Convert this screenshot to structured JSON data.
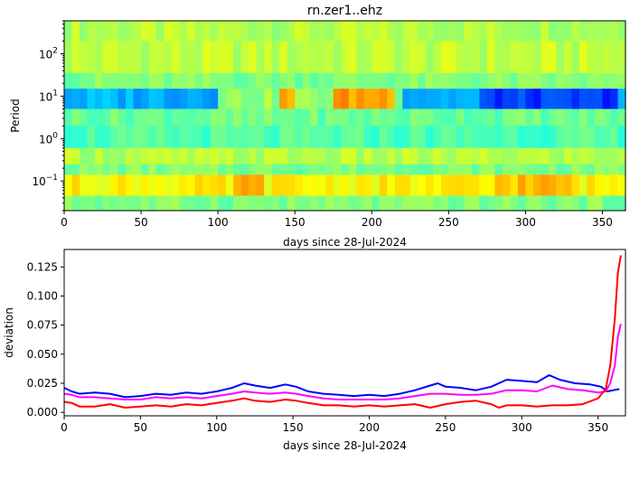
{
  "chart_data": [
    {
      "type": "heatmap",
      "title": "rn.zer1..ehz",
      "xlabel": "days since 28-Jul-2024",
      "ylabel": "Period",
      "xlim": [
        0,
        365
      ],
      "ylim": [
        0.02,
        600
      ],
      "yscale": "log",
      "x_ticks": [
        0,
        50,
        100,
        150,
        200,
        250,
        300,
        350
      ],
      "y_ticks": [
        {
          "value": 0.1,
          "base": "10",
          "exp": "−1"
        },
        {
          "value": 1,
          "base": "10",
          "exp": "0"
        },
        {
          "value": 10,
          "base": "10",
          "exp": "1"
        },
        {
          "value": 100,
          "base": "10",
          "exp": "2"
        }
      ],
      "colormap": "jet",
      "bands": [
        {
          "from": 200,
          "to": 600,
          "level": 0.55
        },
        {
          "from": 35,
          "to": 200,
          "level": 0.56
        },
        {
          "from": 15,
          "to": 35,
          "level": 0.5
        },
        {
          "from": 5,
          "to": 15,
          "level": 0.3,
          "var": 0.12
        },
        {
          "from": 2,
          "to": 5,
          "level": 0.48
        },
        {
          "from": 0.6,
          "to": 2,
          "level": 0.45
        },
        {
          "from": 0.25,
          "to": 0.6,
          "level": 0.55
        },
        {
          "from": 0.14,
          "to": 0.25,
          "level": 0.5
        },
        {
          "from": 0.045,
          "to": 0.14,
          "level": 0.63
        },
        {
          "from": 0.02,
          "to": 0.045,
          "level": 0.5
        }
      ]
    },
    {
      "type": "line",
      "title": "",
      "xlabel": "days since 28-Jul-2024",
      "ylabel": "deviation",
      "xlim": [
        0,
        368
      ],
      "ylim": [
        -0.003,
        0.14
      ],
      "x_ticks": [
        0,
        50,
        100,
        150,
        200,
        250,
        300,
        350
      ],
      "y_ticks": [
        "0.000",
        "0.025",
        "0.050",
        "0.075",
        "0.100",
        "0.125"
      ],
      "y_tick_values": [
        0,
        0.025,
        0.05,
        0.075,
        0.1,
        0.125
      ],
      "series": [
        {
          "color": "#0000ff",
          "x": [
            0,
            5,
            10,
            20,
            30,
            40,
            50,
            60,
            70,
            80,
            90,
            100,
            110,
            118,
            125,
            135,
            145,
            152,
            160,
            170,
            180,
            190,
            200,
            210,
            220,
            230,
            240,
            245,
            250,
            260,
            270,
            280,
            290,
            300,
            310,
            318,
            325,
            335,
            345,
            352,
            356,
            360,
            364
          ],
          "y": [
            0.021,
            0.018,
            0.016,
            0.017,
            0.016,
            0.013,
            0.014,
            0.016,
            0.015,
            0.017,
            0.016,
            0.018,
            0.021,
            0.025,
            0.023,
            0.021,
            0.024,
            0.022,
            0.018,
            0.016,
            0.015,
            0.014,
            0.015,
            0.014,
            0.016,
            0.019,
            0.023,
            0.025,
            0.022,
            0.021,
            0.019,
            0.022,
            0.028,
            0.027,
            0.026,
            0.032,
            0.028,
            0.025,
            0.024,
            0.022,
            0.018,
            0.019,
            0.02
          ]
        },
        {
          "color": "#ff00ff",
          "x": [
            0,
            5,
            10,
            20,
            30,
            40,
            50,
            60,
            70,
            80,
            90,
            100,
            110,
            118,
            125,
            135,
            145,
            152,
            160,
            170,
            180,
            190,
            200,
            210,
            220,
            230,
            240,
            250,
            260,
            270,
            280,
            290,
            300,
            310,
            320,
            330,
            340,
            350,
            355,
            358,
            361,
            363,
            365
          ],
          "y": [
            0.016,
            0.015,
            0.013,
            0.013,
            0.012,
            0.011,
            0.011,
            0.013,
            0.012,
            0.013,
            0.012,
            0.014,
            0.016,
            0.018,
            0.017,
            0.016,
            0.017,
            0.016,
            0.014,
            0.012,
            0.011,
            0.011,
            0.011,
            0.011,
            0.012,
            0.014,
            0.016,
            0.016,
            0.015,
            0.015,
            0.016,
            0.019,
            0.019,
            0.018,
            0.023,
            0.02,
            0.019,
            0.017,
            0.018,
            0.025,
            0.04,
            0.065,
            0.076
          ]
        },
        {
          "color": "#ff0000",
          "x": [
            0,
            5,
            10,
            20,
            30,
            40,
            50,
            60,
            70,
            80,
            90,
            100,
            110,
            118,
            125,
            135,
            145,
            152,
            160,
            170,
            180,
            190,
            200,
            210,
            220,
            230,
            240,
            250,
            260,
            270,
            280,
            285,
            290,
            300,
            310,
            320,
            330,
            340,
            350,
            355,
            358,
            361,
            363,
            365
          ],
          "y": [
            0.009,
            0.008,
            0.005,
            0.005,
            0.007,
            0.004,
            0.005,
            0.006,
            0.005,
            0.007,
            0.006,
            0.008,
            0.01,
            0.012,
            0.01,
            0.009,
            0.011,
            0.01,
            0.008,
            0.006,
            0.006,
            0.005,
            0.006,
            0.005,
            0.006,
            0.007,
            0.004,
            0.007,
            0.009,
            0.01,
            0.007,
            0.004,
            0.006,
            0.006,
            0.005,
            0.006,
            0.006,
            0.007,
            0.012,
            0.02,
            0.04,
            0.08,
            0.12,
            0.135
          ]
        }
      ]
    }
  ]
}
